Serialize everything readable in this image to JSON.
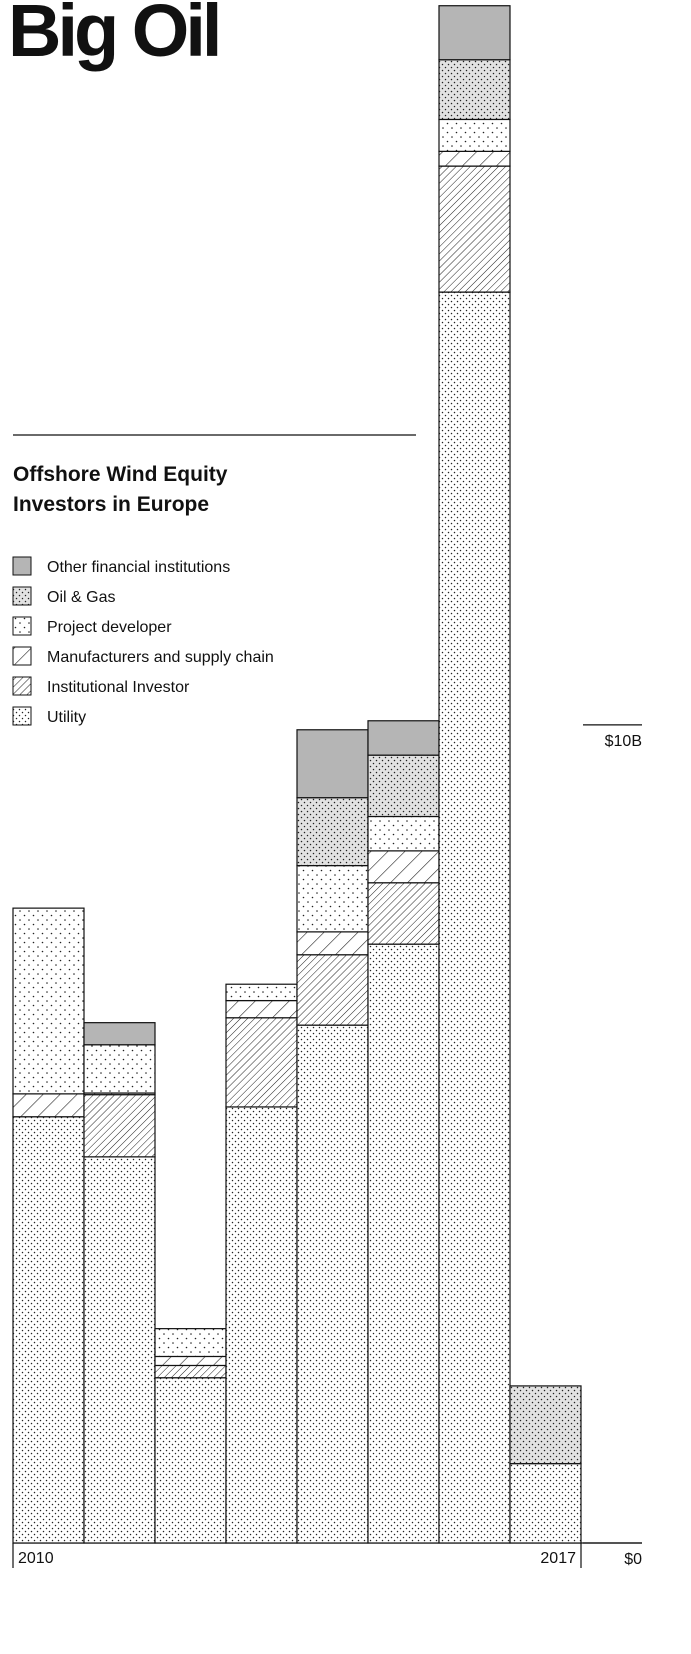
{
  "chart_data": {
    "type": "stacked_bar",
    "title": "Big Oil",
    "subtitle": "Offshore Wind Equity Investors in Europe",
    "categories": [
      "2010",
      null,
      null,
      null,
      null,
      null,
      null,
      "2017"
    ],
    "series": [
      {
        "name": "Utility",
        "color": "#ffffff",
        "pattern": "dots",
        "values": [
          5.21,
          4.72,
          2.02,
          5.33,
          6.33,
          7.32,
          15.29,
          0.97
        ]
      },
      {
        "name": "Institutional Investor",
        "color": "#ffffff",
        "pattern": "dense-hatch",
        "values": [
          0,
          0.76,
          0.15,
          1.09,
          0.86,
          0.75,
          1.54,
          0
        ]
      },
      {
        "name": "Manufacturers and supply chain",
        "color": "#ffffff",
        "pattern": "wide-hatch",
        "values": [
          0.28,
          0.02,
          0.11,
          0.21,
          0.28,
          0.39,
          0.18,
          0
        ]
      },
      {
        "name": "Project developer",
        "color": "#ffffff",
        "pattern": "sparse-dots",
        "values": [
          2.27,
          0.59,
          0.34,
          0.2,
          0.81,
          0.42,
          0.39,
          0
        ]
      },
      {
        "name": "Oil & Gas",
        "color": "#e2e2e2",
        "pattern": "dots",
        "values": [
          0,
          0,
          0,
          0,
          0.83,
          0.75,
          0.73,
          0.95
        ]
      },
      {
        "name": "Other financial institutions",
        "color": "#b5b5b5",
        "pattern": "none",
        "values": [
          0,
          0.27,
          0,
          0,
          0.83,
          0.42,
          0.66,
          0
        ]
      }
    ],
    "ylim": [
      0,
      18.86
    ],
    "yticks": [
      {
        "value": 0,
        "label": "$0"
      },
      {
        "value": 10,
        "label": "$10B"
      }
    ]
  }
}
